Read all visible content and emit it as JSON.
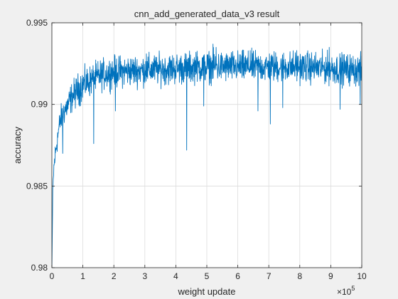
{
  "chart_data": {
    "type": "line",
    "title": "cnn_add_generated_data_v3 result",
    "xlabel": "weight update",
    "ylabel": "accuracy",
    "x_exponent_label": "×10",
    "x_exponent_power": "5",
    "xlim": [
      0,
      10
    ],
    "ylim": [
      0.98,
      0.995
    ],
    "x_ticks": [
      0,
      1,
      2,
      3,
      4,
      5,
      6,
      7,
      8,
      9,
      10
    ],
    "x_tick_labels": [
      "0",
      "1",
      "2",
      "3",
      "4",
      "5",
      "6",
      "7",
      "8",
      "9",
      "10"
    ],
    "y_ticks": [
      0.98,
      0.985,
      0.99,
      0.995
    ],
    "y_tick_labels": [
      "0.98",
      "0.985",
      "0.99",
      "0.995"
    ],
    "grid": true,
    "legend": "none",
    "line_color": "#0072bd",
    "series": [
      {
        "points": [
          [
            0.0,
            0.98
          ],
          [
            0.03,
            0.9845
          ],
          [
            0.06,
            0.986
          ],
          [
            0.1,
            0.9868
          ],
          [
            0.15,
            0.9875
          ],
          [
            0.2,
            0.9882
          ],
          [
            0.25,
            0.9888
          ],
          [
            0.3,
            0.9892
          ],
          [
            0.4,
            0.9896
          ],
          [
            0.5,
            0.9899
          ],
          [
            0.6,
            0.9903
          ],
          [
            0.7,
            0.9906
          ],
          [
            0.8,
            0.9908
          ],
          [
            1.0,
            0.9912
          ],
          [
            1.3,
            0.9915
          ],
          [
            1.6,
            0.9918
          ],
          [
            2.0,
            0.992
          ],
          [
            3.0,
            0.9921
          ],
          [
            4.0,
            0.9922
          ],
          [
            5.0,
            0.9923
          ],
          [
            6.0,
            0.9923
          ],
          [
            7.0,
            0.9923
          ],
          [
            8.0,
            0.9923
          ],
          [
            9.0,
            0.9922
          ],
          [
            10.0,
            0.9921
          ]
        ],
        "noise_amplitude": 0.0006,
        "dips": [
          [
            0.35,
            0.987
          ],
          [
            1.35,
            0.9876
          ],
          [
            2.05,
            0.9896
          ],
          [
            4.35,
            0.9872
          ],
          [
            4.9,
            0.9899
          ],
          [
            6.65,
            0.9896
          ],
          [
            7.05,
            0.9888
          ],
          [
            7.45,
            0.9898
          ],
          [
            9.3,
            0.9897
          ],
          [
            9.95,
            0.99
          ]
        ],
        "spikes": [
          [
            3.05,
            0.9931
          ],
          [
            4.65,
            0.9932
          ],
          [
            5.2,
            0.9937
          ],
          [
            5.3,
            0.9935
          ],
          [
            6.4,
            0.9933
          ],
          [
            7.9,
            0.9933
          ],
          [
            8.95,
            0.9935
          ]
        ]
      }
    ]
  }
}
